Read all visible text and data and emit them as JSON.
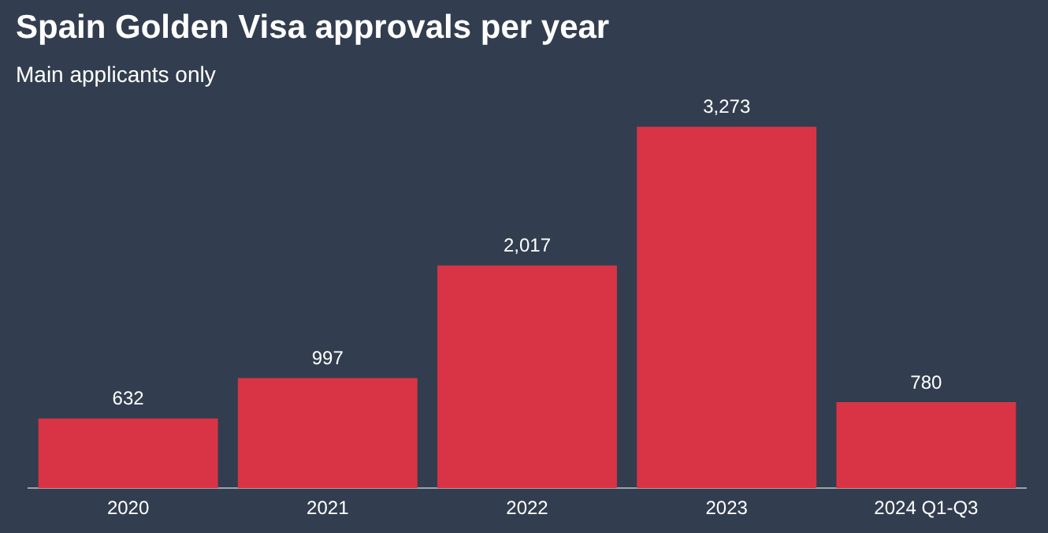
{
  "chart_data": {
    "type": "bar",
    "title": "Spain Golden Visa approvals per year",
    "subtitle": "Main applicants only",
    "categories": [
      "2020",
      "2021",
      "2022",
      "2023",
      "2024 Q1-Q3"
    ],
    "values": [
      632,
      997,
      2017,
      3273,
      780
    ],
    "value_labels": [
      "632",
      "997",
      "2,017",
      "3,273",
      "780"
    ],
    "color": "#d93445",
    "grid": false,
    "legend": false
  }
}
